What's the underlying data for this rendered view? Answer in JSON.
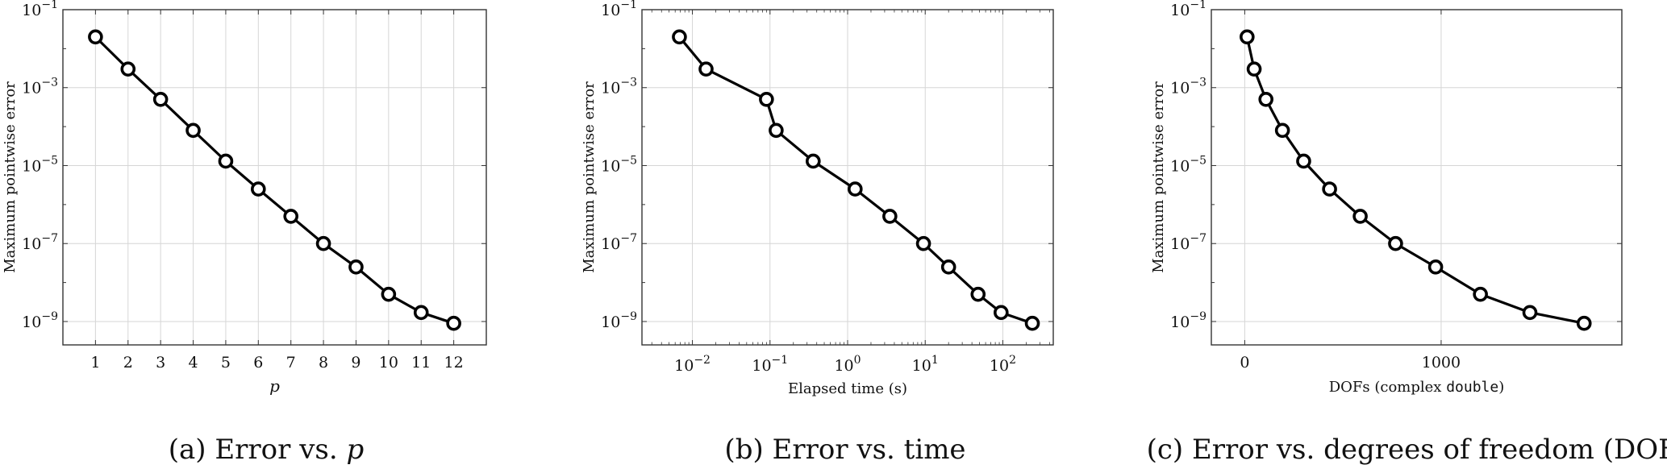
{
  "chart_data": [
    {
      "type": "line",
      "id": "a",
      "caption_label": "(a) Error vs.",
      "caption_var": "p",
      "xlabel": "p",
      "ylabel": "Maximum pointwise error",
      "xscale": "linear",
      "yscale": "log",
      "xlim": [
        0,
        13
      ],
      "ylim_exp": [
        -9.6,
        -1
      ],
      "grid": true,
      "xticks": [
        1,
        2,
        3,
        4,
        5,
        6,
        7,
        8,
        9,
        10,
        11,
        12
      ],
      "xtick_labels": [
        "1",
        "2",
        "3",
        "4",
        "5",
        "6",
        "7",
        "8",
        "9",
        "10",
        "11",
        "12"
      ],
      "yticks_exp": [
        -1,
        -3,
        -5,
        -7,
        -9
      ],
      "ytick_labels": [
        "10",
        "10",
        "10",
        "10",
        "10"
      ],
      "ytick_sups": [
        "−1",
        "−3",
        "−5",
        "−7",
        "−9"
      ],
      "x": [
        1,
        2,
        3,
        4,
        5,
        6,
        7,
        8,
        9,
        10,
        11,
        12
      ],
      "y": [
        0.02,
        0.003,
        0.0005,
        8e-05,
        1.3e-05,
        2.5e-06,
        5e-07,
        1e-07,
        2.5e-08,
        5e-09,
        1.7e-09,
        9e-10
      ],
      "color": "#000000"
    },
    {
      "type": "line",
      "id": "b",
      "caption_label": "(b) Error vs. time",
      "caption_var": "",
      "xlabel": "Elapsed time (s)",
      "ylabel": "Maximum pointwise error",
      "xscale": "log",
      "yscale": "log",
      "xlim_exp": [
        -2.65,
        2.65
      ],
      "ylim_exp": [
        -9.6,
        -1
      ],
      "grid": true,
      "xticks_exp": [
        -2,
        -1,
        0,
        1,
        2
      ],
      "xtick_labels": [
        "10",
        "10",
        "10",
        "10",
        "10"
      ],
      "xtick_sups": [
        "−2",
        "−1",
        "0",
        "1",
        "2"
      ],
      "yticks_exp": [
        -1,
        -3,
        -5,
        -7,
        -9
      ],
      "ytick_labels": [
        "10",
        "10",
        "10",
        "10",
        "10"
      ],
      "ytick_sups": [
        "−1",
        "−3",
        "−5",
        "−7",
        "−9"
      ],
      "x": [
        0.0068,
        0.015,
        0.09,
        0.12,
        0.36,
        1.25,
        3.5,
        9.5,
        20,
        48,
        95,
        240
      ],
      "y": [
        0.02,
        0.003,
        0.0005,
        8e-05,
        1.3e-05,
        2.5e-06,
        5e-07,
        1e-07,
        2.5e-08,
        5e-09,
        1.7e-09,
        9e-10
      ],
      "color": "#000000"
    },
    {
      "type": "line",
      "id": "c",
      "caption_label": "(c) Error vs. degrees of freedom (DOFs)",
      "caption_var": "",
      "xlabel": "DOFs (complex",
      "xlabel_code": "double",
      "xlabel_end": ")",
      "ylabel": "Maximum pointwise error",
      "xscale": "linear",
      "yscale": "log",
      "xlim": [
        -170,
        1920
      ],
      "ylim_exp": [
        -9.6,
        -1
      ],
      "grid": true,
      "xticks": [
        0,
        1000
      ],
      "xtick_labels": [
        "0",
        "1000"
      ],
      "yticks_exp": [
        -1,
        -3,
        -5,
        -7,
        -9
      ],
      "ytick_labels": [
        "10",
        "10",
        "10",
        "10",
        "10"
      ],
      "ytick_sups": [
        "−1",
        "−3",
        "−5",
        "−7",
        "−9"
      ],
      "x": [
        12,
        48,
        108,
        192,
        300,
        432,
        588,
        768,
        972,
        1200,
        1452,
        1728
      ],
      "y": [
        0.02,
        0.003,
        0.0005,
        8e-05,
        1.3e-05,
        2.5e-06,
        5e-07,
        1e-07,
        2.5e-08,
        5e-09,
        1.7e-09,
        9e-10
      ],
      "color": "#000000"
    }
  ]
}
